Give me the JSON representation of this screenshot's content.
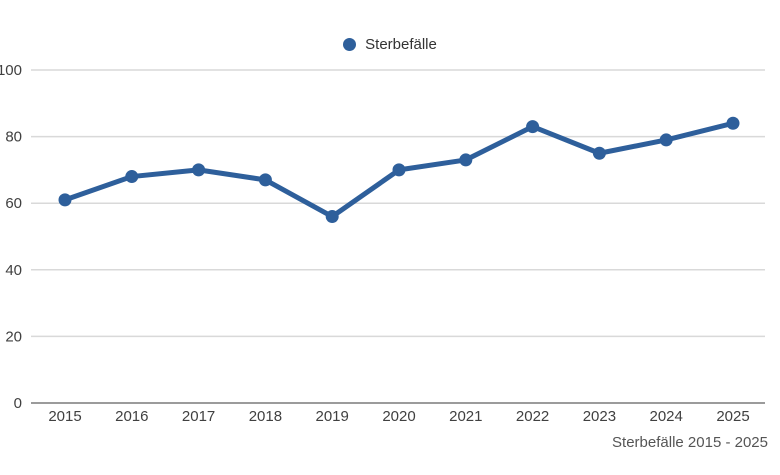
{
  "chart_data": {
    "type": "line",
    "title": "",
    "xlabel": "",
    "ylabel": "",
    "categories": [
      "2015",
      "2016",
      "2017",
      "2018",
      "2019",
      "2020",
      "2021",
      "2022",
      "2023",
      "2024",
      "2025"
    ],
    "series": [
      {
        "name": "Sterbefälle",
        "color": "#2e5f9b",
        "values": [
          61,
          68,
          70,
          67,
          56,
          70,
          73,
          83,
          75,
          79,
          84
        ]
      }
    ],
    "ylim": [
      0,
      100
    ],
    "yticks": [
      0,
      20,
      40,
      60,
      80,
      100
    ],
    "grid": "horizontal",
    "legend_position": "top-center",
    "footer": "Sterbefälle 2015 - 2025",
    "colors": {
      "line": "#2e5f9b",
      "marker": "#2e5f9b",
      "grid": "#d9d9d9",
      "axis": "#9b9b9b",
      "tick_text": "#404040",
      "footer_text": "#555555",
      "background": "#ffffff"
    }
  }
}
